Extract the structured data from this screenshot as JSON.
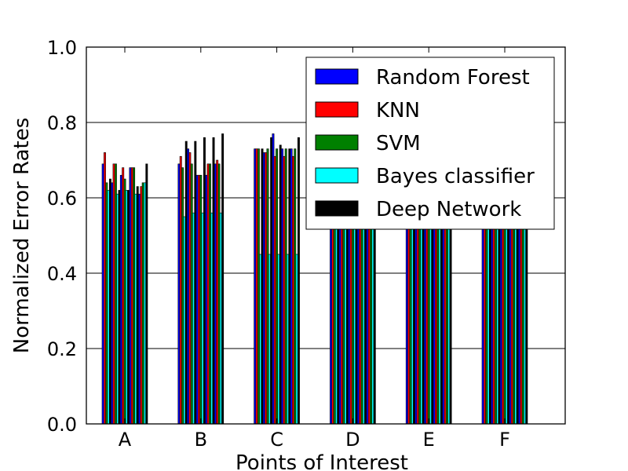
{
  "chart_data": {
    "type": "bar",
    "title": "",
    "xlabel": "Points of Interest",
    "ylabel": "Normalized Error Rates",
    "ylim": [
      0,
      1.0
    ],
    "y_ticks": [
      "0.0",
      "0.2",
      "0.4",
      "0.6",
      "0.8",
      "1.0"
    ],
    "y_tick_values": [
      0.0,
      0.2,
      0.4,
      0.6,
      0.8,
      1.0
    ],
    "grid": "horizontal",
    "legend_position": "top-right",
    "categories": [
      "A",
      "B",
      "C",
      "D",
      "E",
      "F"
    ],
    "groups_per_category": 5,
    "series": [
      {
        "name": "Random Forest",
        "color": "#0000ff",
        "values": [
          [
            0.69,
            0.64,
            0.66,
            0.68,
            0.61
          ],
          [
            0.69,
            0.73,
            0.66,
            0.66,
            0.69
          ],
          [
            0.73,
            0.72,
            0.77,
            0.73,
            0.73
          ],
          [
            0.75,
            0.75,
            0.75,
            0.75,
            0.75
          ],
          [
            0.75,
            0.75,
            0.75,
            0.75,
            0.75
          ],
          [
            0.75,
            0.75,
            0.75,
            0.75,
            0.75
          ]
        ]
      },
      {
        "name": "KNN",
        "color": "#ff0000",
        "values": [
          [
            0.72,
            0.69,
            0.68,
            0.68,
            0.63
          ],
          [
            0.71,
            0.72,
            0.66,
            0.69,
            0.7
          ],
          [
            0.73,
            0.72,
            0.71,
            0.71,
            0.71
          ],
          [
            0.73,
            0.73,
            0.73,
            0.73,
            0.73
          ],
          [
            0.73,
            0.73,
            0.73,
            0.73,
            0.73
          ],
          [
            0.73,
            0.73,
            0.73,
            0.73,
            0.73
          ]
        ]
      },
      {
        "name": "SVM",
        "color": "#008000",
        "values": [
          [
            0.64,
            0.69,
            0.65,
            0.68,
            0.64
          ],
          [
            0.68,
            0.69,
            0.66,
            0.69,
            0.69
          ],
          [
            0.73,
            0.73,
            0.73,
            0.73,
            0.73
          ],
          [
            0.73,
            0.73,
            0.73,
            0.73,
            0.73
          ],
          [
            0.73,
            0.73,
            0.73,
            0.73,
            0.73
          ],
          [
            0.73,
            0.73,
            0.73,
            0.73,
            0.73
          ]
        ]
      },
      {
        "name": "Bayes classifier",
        "color": "#00ffff",
        "values": [
          [
            0.62,
            0.61,
            0.62,
            0.61,
            0.64
          ],
          [
            0.55,
            0.56,
            0.56,
            0.56,
            0.56
          ],
          [
            0.45,
            0.45,
            0.45,
            0.45,
            0.45
          ],
          [
            0.6,
            0.6,
            0.6,
            0.6,
            0.6
          ],
          [
            0.6,
            0.6,
            0.6,
            0.6,
            0.6
          ],
          [
            0.6,
            0.6,
            0.6,
            0.6,
            0.6
          ]
        ]
      },
      {
        "name": "Deep Network",
        "color": "#000000",
        "values": [
          [
            0.65,
            0.62,
            0.62,
            0.63,
            0.69
          ],
          [
            0.75,
            0.75,
            0.76,
            0.76,
            0.77
          ],
          [
            0.73,
            0.76,
            0.74,
            0.73,
            0.76
          ],
          [
            0.73,
            0.73,
            0.73,
            0.73,
            0.73
          ],
          [
            0.73,
            0.73,
            0.73,
            0.73,
            0.73
          ],
          [
            0.73,
            0.73,
            0.73,
            0.73,
            0.73
          ]
        ]
      }
    ]
  }
}
